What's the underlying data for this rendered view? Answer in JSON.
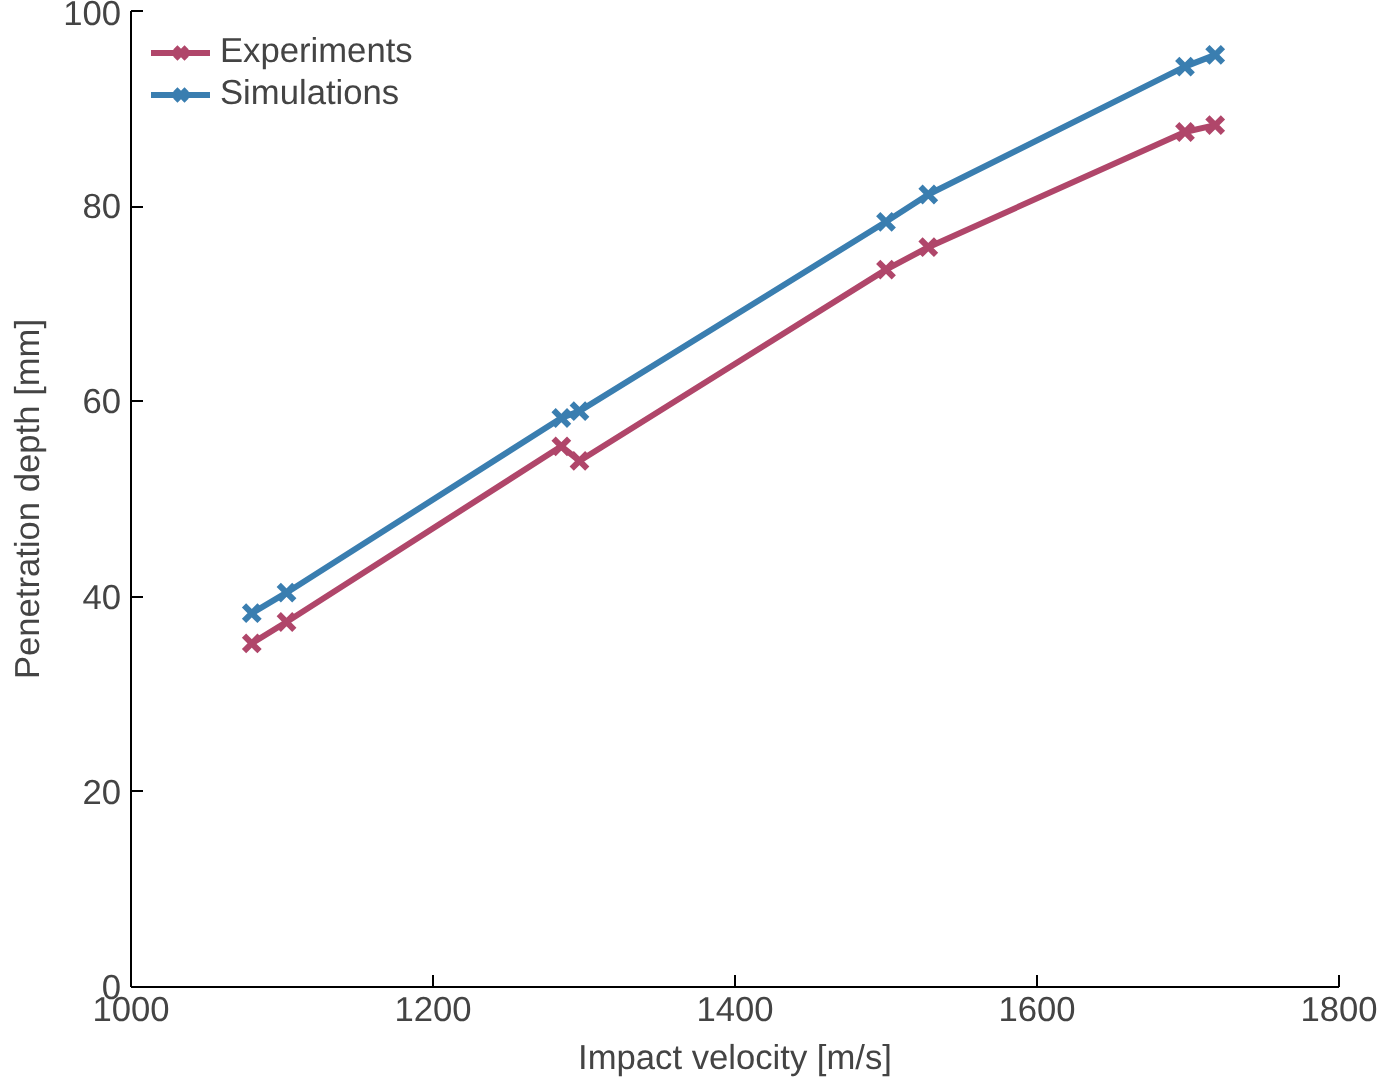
{
  "chart_data": {
    "type": "line",
    "xlabel": "Impact velocity [m/s]",
    "ylabel": "Penetration depth [mm]",
    "x": [
      1080,
      1103,
      1285,
      1297,
      1500,
      1528,
      1698,
      1718
    ],
    "series": [
      {
        "name": "Experiments",
        "color": "#b0466a",
        "values": [
          35.2,
          37.4,
          55.4,
          53.9,
          73.5,
          75.8,
          87.6,
          88.3
        ]
      },
      {
        "name": "Simulations",
        "color": "#3a7eb0",
        "values": [
          38.3,
          40.4,
          58.3,
          59.0,
          78.4,
          81.2,
          94.3,
          95.5
        ]
      }
    ],
    "xlim": [
      1000,
      1800
    ],
    "xticks": [
      1000,
      1200,
      1400,
      1600,
      1800
    ],
    "ylim": [
      0,
      100
    ],
    "yticks": [
      0,
      20,
      40,
      60,
      80,
      100
    ],
    "grid": false,
    "legend": "top left",
    "marker": "cross",
    "line_style": "solid"
  }
}
